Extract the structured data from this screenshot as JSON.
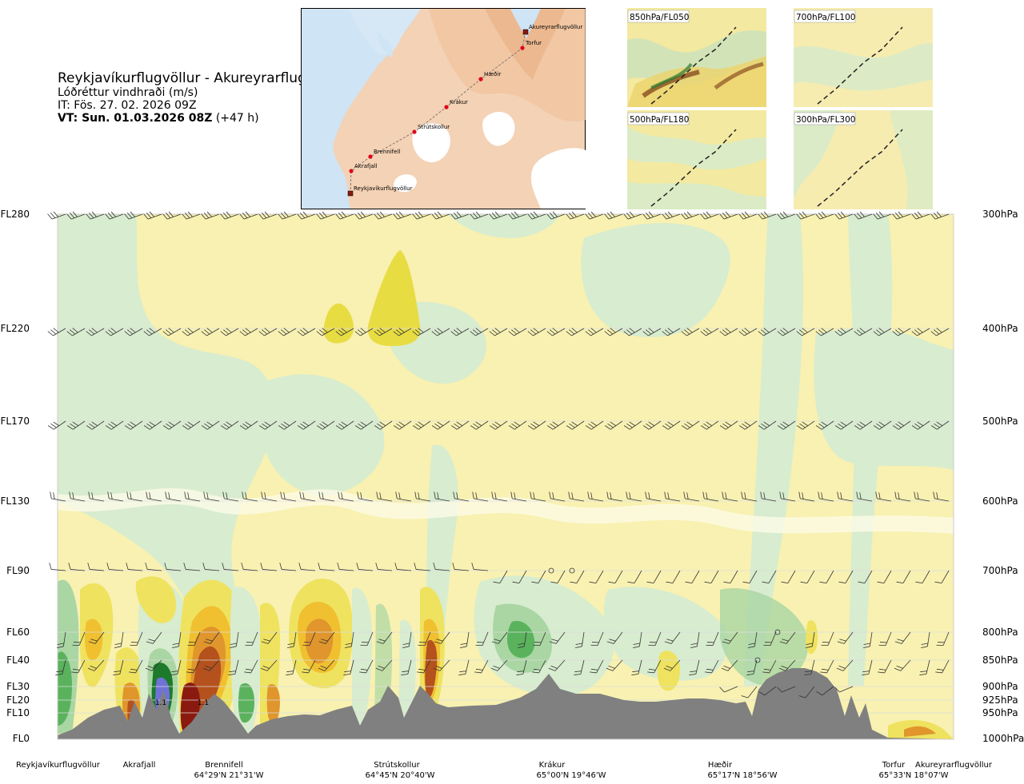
{
  "header": {
    "title": "Reykjavíkurflugvöllur - Akureyrarflugvöllur",
    "subtitle": "Lóðréttur vindhraði (m/s)",
    "it_label": "IT: Fös. 27. 02. 2026 09Z",
    "vt_label": "VT: Sun. 01.03.2026 08Z",
    "vt_offset": "(+47 h)"
  },
  "map": {
    "places": [
      {
        "name": "Akureyrarflugvöllur",
        "kind": "airport"
      },
      {
        "name": "Torfur",
        "kind": "point"
      },
      {
        "name": "Hæðir",
        "kind": "point"
      },
      {
        "name": "Krákur",
        "kind": "point"
      },
      {
        "name": "Strútskollur",
        "kind": "point"
      },
      {
        "name": "Brennifell",
        "kind": "point"
      },
      {
        "name": "Akrafjall",
        "kind": "point"
      },
      {
        "name": "Reykjavíkurflugvöllur",
        "kind": "airport"
      }
    ],
    "colors": {
      "sea": "#cfe4f4",
      "land": "#f6dcc6",
      "ice": "#ffffff",
      "route": "#666666",
      "marker": "#e0001b"
    }
  },
  "level_maps": [
    {
      "label": "850hPa/FL050"
    },
    {
      "label": "700hPa/FL100"
    },
    {
      "label": "500hPa/FL180"
    },
    {
      "label": "300hPa/FL300"
    }
  ],
  "chart_data": {
    "type": "heatmap",
    "title": "Lóðréttur vindhraði (m/s)",
    "xlabel": "",
    "ylabel": "",
    "flight_levels": [
      "FL280",
      "FL220",
      "FL170",
      "FL130",
      "FL90",
      "FL60",
      "FL40",
      "FL30",
      "FL20",
      "FL10",
      "FL0"
    ],
    "pressure_levels": [
      "300hPa",
      "400hPa",
      "500hPa",
      "600hPa",
      "700hPa",
      "800hPa",
      "850hPa",
      "900hPa",
      "925hPa",
      "950hPa",
      "1000hPa"
    ],
    "pressure_values_hpa": [
      300,
      400,
      500,
      600,
      700,
      800,
      850,
      900,
      925,
      950,
      1000
    ],
    "ylim_hpa": [
      1000,
      300
    ],
    "waypoints": [
      {
        "name": "Reykjavíkurflugvöllur",
        "coord": ""
      },
      {
        "name": "Akrafjall",
        "coord": ""
      },
      {
        "name": "Brennifell",
        "coord": "64°29'N 21°31'W"
      },
      {
        "name": "Strútskollur",
        "coord": "64°45'N 20°40'W"
      },
      {
        "name": "Krákur",
        "coord": "65°00'N 19°46'W"
      },
      {
        "name": "Hæðir",
        "coord": "65°17'N 18°56'W"
      },
      {
        "name": "Torfur",
        "coord": "65°33'N 18°07'W"
      },
      {
        "name": "Akureyrarflugvöllur",
        "coord": ""
      }
    ],
    "annotations": [
      {
        "text": "1.1",
        "location": "Brennifell lower levels (max upward)"
      },
      {
        "text": "1.1",
        "location": "east of Brennifell"
      }
    ],
    "colors": {
      "strong_down_dark": "#1d7a2c",
      "strong_down": "#5ab25d",
      "down": "#a9d6a3",
      "weak_down": "#d8eccf",
      "neutral": "#fdfbe6",
      "weak_up": "#f8f1b1",
      "up": "#efe25f",
      "moderate_up": "#f0c030",
      "strong_up": "#e0962c",
      "very_strong_up": "#b4511d",
      "extreme_up": "#8a1a10",
      "max_core": "#7072d8",
      "terrain": "#808080",
      "barbs": "#333333"
    },
    "grid": true,
    "terrain_shaded": true,
    "wind_barbs": true
  }
}
